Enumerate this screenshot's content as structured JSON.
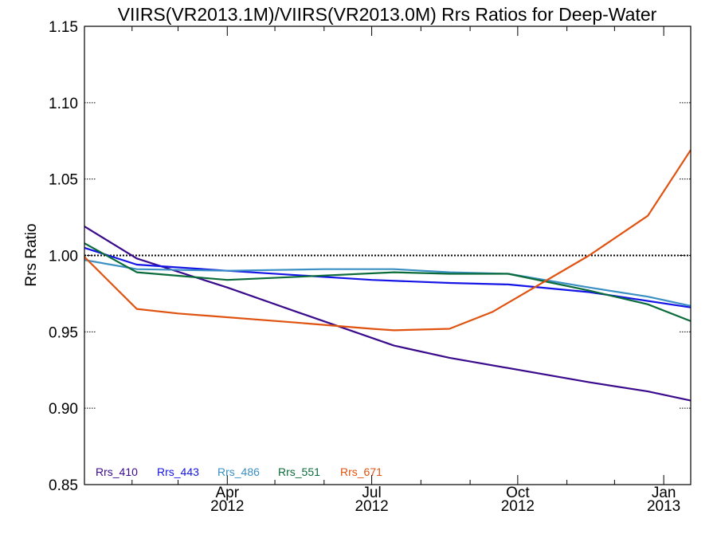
{
  "chart_data": {
    "type": "line",
    "title": "VIIRS(VR2013.1M)/VIIRS(VR2013.0M)  Rrs Ratios for Deep-Water",
    "xlabel": "",
    "ylabel": "Rrs Ratio",
    "xlim": [
      "2012-01-02",
      "2013-01-18"
    ],
    "ylim": [
      0.85,
      1.15
    ],
    "yticks": [
      0.85,
      0.9,
      0.95,
      1.0,
      1.05,
      1.1,
      1.15
    ],
    "ytick_labels": [
      "0.85",
      "0.90",
      "0.95",
      "1.00",
      "1.05",
      "1.10",
      "1.15"
    ],
    "xticks": [
      {
        "date": "2012-04-01",
        "label_top": "Apr",
        "label_bottom": "2012"
      },
      {
        "date": "2012-07-01",
        "label_top": "Jul",
        "label_bottom": "2012"
      },
      {
        "date": "2012-10-01",
        "label_top": "Oct",
        "label_bottom": "2012"
      },
      {
        "date": "2013-01-01",
        "label_top": "Jan",
        "label_bottom": "2013"
      }
    ],
    "x_minor_ticks": [
      "2012-02-01",
      "2012-03-01",
      "2012-05-01",
      "2012-06-01",
      "2012-08-01",
      "2012-09-01",
      "2012-11-01",
      "2012-12-01"
    ],
    "reference_line": {
      "y": 1.0,
      "style": "dotted",
      "color": "#000000"
    },
    "legend_position": "bottom-left",
    "series": [
      {
        "name": "Rrs_410",
        "color": "#3a0a8c",
        "x": [
          "2012-01-02",
          "2012-02-04",
          "2012-04-01",
          "2012-05-15",
          "2012-07-15",
          "2012-08-19",
          "2012-11-15",
          "2012-12-22",
          "2013-01-18"
        ],
        "y": [
          1.019,
          0.998,
          0.979,
          0.963,
          0.941,
          0.933,
          0.917,
          0.911,
          0.905
        ]
      },
      {
        "name": "Rrs_443",
        "color": "#1414e6",
        "x": [
          "2012-01-02",
          "2012-02-04",
          "2012-04-01",
          "2012-07-01",
          "2012-08-19",
          "2012-09-25",
          "2012-11-15",
          "2013-01-18"
        ],
        "y": [
          1.005,
          0.994,
          0.99,
          0.984,
          0.982,
          0.981,
          0.976,
          0.966
        ]
      },
      {
        "name": "Rrs_486",
        "color": "#3a8fc4",
        "x": [
          "2012-01-02",
          "2012-02-04",
          "2012-04-01",
          "2012-06-01",
          "2012-07-15",
          "2012-08-19",
          "2012-09-25",
          "2012-11-15",
          "2012-12-22",
          "2013-01-18"
        ],
        "y": [
          0.997,
          0.991,
          0.99,
          0.991,
          0.991,
          0.989,
          0.988,
          0.979,
          0.973,
          0.967
        ]
      },
      {
        "name": "Rrs_551",
        "color": "#0a6b3a",
        "x": [
          "2012-01-02",
          "2012-02-04",
          "2012-04-01",
          "2012-05-15",
          "2012-07-15",
          "2012-08-19",
          "2012-09-25",
          "2012-11-15",
          "2012-12-22",
          "2013-01-18"
        ],
        "y": [
          1.008,
          0.989,
          0.984,
          0.986,
          0.989,
          0.988,
          0.988,
          0.977,
          0.968,
          0.957
        ]
      },
      {
        "name": "Rrs_671",
        "color": "#e0520f",
        "x": [
          "2012-01-02",
          "2012-02-04",
          "2012-03-01",
          "2012-05-15",
          "2012-07-01",
          "2012-07-15",
          "2012-08-19",
          "2012-09-15",
          "2012-11-15",
          "2012-12-22",
          "2013-01-18"
        ],
        "y": [
          0.999,
          0.965,
          0.962,
          0.956,
          0.952,
          0.951,
          0.952,
          0.963,
          1.0,
          1.026,
          1.069
        ]
      }
    ]
  }
}
